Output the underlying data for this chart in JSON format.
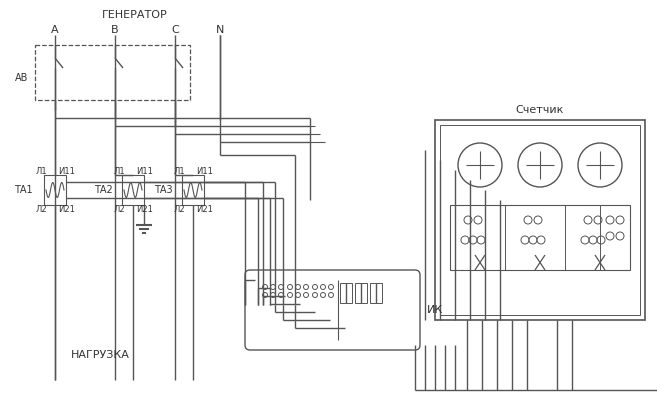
{
  "bg_color": "#ffffff",
  "line_color": "#555555",
  "text_color": "#333333",
  "figsize": [
    6.57,
    4.08
  ],
  "dpi": 100,
  "title_generator": "ГЕНЕРАТОР",
  "label_A": "A",
  "label_B": "B",
  "label_C": "C",
  "label_N": "N",
  "label_AB": "АВ",
  "label_TA1": "ТА1",
  "label_TA2": "ТА2",
  "label_TA3": "ТА3",
  "label_L1": "Л1",
  "label_L2": "Л2",
  "label_I1": "И11",
  "label_I2": "И21",
  "label_nagruzka": "НАГРУЗКА",
  "label_IK": "ИК",
  "label_schetchik": "Счетчик"
}
